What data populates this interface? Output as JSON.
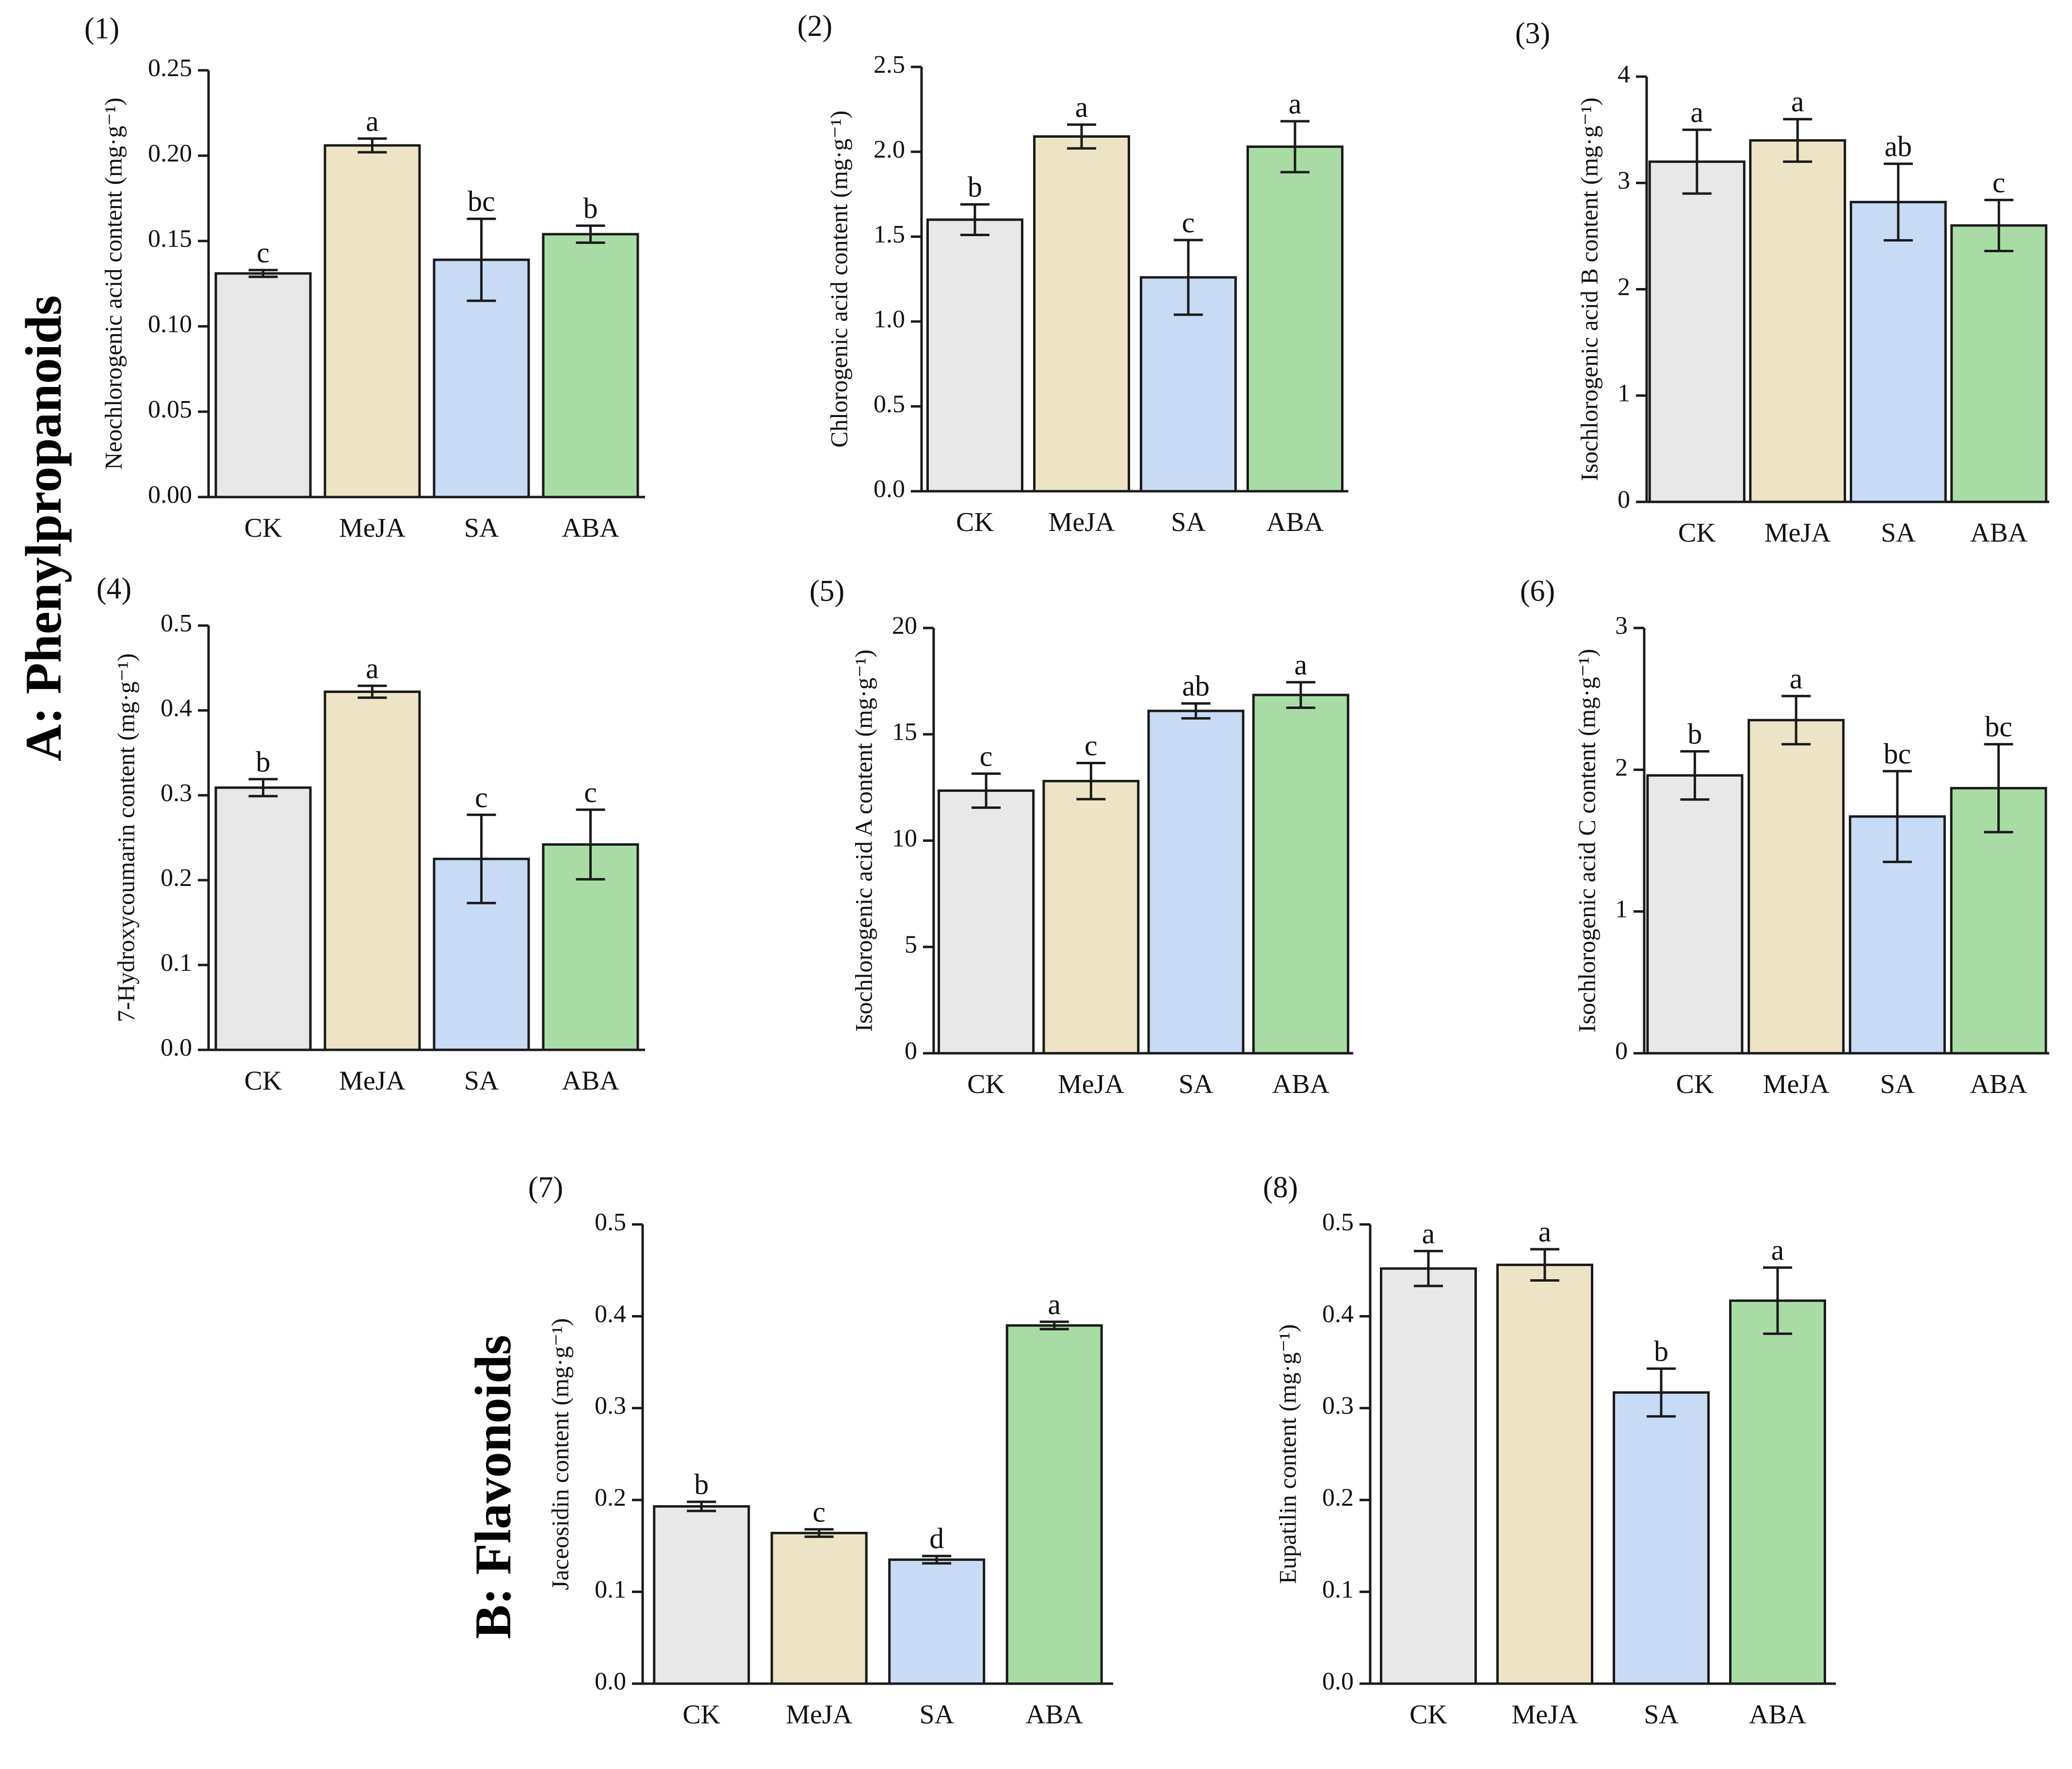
{
  "sections": {
    "a": "A: Phenylpropanoids",
    "b": "B: Flavonoids"
  },
  "colors": {
    "CK": "#e8e8e8",
    "MeJA": "#ece4c4",
    "SA": "#c7dbf5",
    "ABA": "#a9dca5",
    "stroke": "#1a1a1a"
  },
  "chart_data": [
    {
      "id": "1",
      "type": "bar",
      "label": "(1)",
      "ylabel": "Neochlorogenic acid content (mg·g⁻¹)",
      "categories": [
        "CK",
        "MeJA",
        "SA",
        "ABA"
      ],
      "values": [
        0.131,
        0.206,
        0.139,
        0.154
      ],
      "errors": [
        0.002,
        0.004,
        0.024,
        0.005
      ],
      "letters": [
        "c",
        "a",
        "bc",
        "b"
      ],
      "ylim": [
        0,
        0.25
      ],
      "yticks": [
        "0.00",
        "0.05",
        "0.10",
        "0.15",
        "0.20",
        "0.25"
      ]
    },
    {
      "id": "2",
      "type": "bar",
      "label": "(2)",
      "ylabel": "Chlorogenic acid content (mg·g⁻¹)",
      "categories": [
        "CK",
        "MeJA",
        "SA",
        "ABA"
      ],
      "values": [
        1.6,
        2.09,
        1.26,
        2.03
      ],
      "errors": [
        0.09,
        0.07,
        0.22,
        0.15
      ],
      "letters": [
        "b",
        "a",
        "c",
        "a"
      ],
      "ylim": [
        0,
        2.5
      ],
      "yticks": [
        "0.0",
        "0.5",
        "1.0",
        "1.5",
        "2.0",
        "2.5"
      ]
    },
    {
      "id": "3",
      "type": "bar",
      "label": "(3)",
      "ylabel": "Isochlorogenic acid B content (mg·g⁻¹)",
      "categories": [
        "CK",
        "MeJA",
        "SA",
        "ABA"
      ],
      "values": [
        3.2,
        3.4,
        2.82,
        2.6
      ],
      "errors": [
        0.3,
        0.2,
        0.36,
        0.24
      ],
      "letters": [
        "a",
        "a",
        "ab",
        "c"
      ],
      "ylim": [
        0,
        4
      ],
      "yticks": [
        "0",
        "1",
        "2",
        "3",
        "4"
      ]
    },
    {
      "id": "4",
      "type": "bar",
      "label": "(4)",
      "ylabel": "7-Hydroxycoumarin content (mg·g⁻¹)",
      "categories": [
        "CK",
        "MeJA",
        "SA",
        "ABA"
      ],
      "values": [
        0.309,
        0.422,
        0.225,
        0.242
      ],
      "errors": [
        0.01,
        0.007,
        0.052,
        0.041
      ],
      "letters": [
        "b",
        "a",
        "c",
        "c"
      ],
      "ylim": [
        0,
        0.5
      ],
      "yticks": [
        "0.0",
        "0.1",
        "0.2",
        "0.3",
        "0.4",
        "0.5"
      ]
    },
    {
      "id": "5",
      "type": "bar",
      "label": "(5)",
      "ylabel": "Isochlorogenic acid A content (mg·g⁻¹)",
      "categories": [
        "CK",
        "MeJA",
        "SA",
        "ABA"
      ],
      "values": [
        12.35,
        12.8,
        16.1,
        16.85
      ],
      "errors": [
        0.8,
        0.85,
        0.35,
        0.6
      ],
      "letters": [
        "c",
        "c",
        "ab",
        "a"
      ],
      "ylim": [
        0,
        20
      ],
      "yticks": [
        "0",
        "5",
        "10",
        "15",
        "20"
      ]
    },
    {
      "id": "6",
      "type": "bar",
      "label": "(6)",
      "ylabel": "Isochlorogenic acid C content (mg·g⁻¹)",
      "categories": [
        "CK",
        "MeJA",
        "SA",
        "ABA"
      ],
      "values": [
        1.96,
        2.35,
        1.67,
        1.87
      ],
      "errors": [
        0.17,
        0.17,
        0.32,
        0.31
      ],
      "letters": [
        "b",
        "a",
        "bc",
        "bc"
      ],
      "ylim": [
        0,
        3
      ],
      "yticks": [
        "0",
        "1",
        "2",
        "3"
      ]
    },
    {
      "id": "7",
      "type": "bar",
      "label": "(7)",
      "ylabel": "Jaceosidin content (mg·g⁻¹)",
      "categories": [
        "CK",
        "MeJA",
        "SA",
        "ABA"
      ],
      "values": [
        0.193,
        0.164,
        0.135,
        0.39
      ],
      "errors": [
        0.005,
        0.004,
        0.004,
        0.004
      ],
      "letters": [
        "b",
        "c",
        "d",
        "a"
      ],
      "ylim": [
        0,
        0.5
      ],
      "yticks": [
        "0.0",
        "0.1",
        "0.2",
        "0.3",
        "0.4",
        "0.5"
      ]
    },
    {
      "id": "8",
      "type": "bar",
      "label": "(8)",
      "ylabel": "Eupatilin content (mg·g⁻¹)",
      "categories": [
        "CK",
        "MeJA",
        "SA",
        "ABA"
      ],
      "values": [
        0.452,
        0.456,
        0.317,
        0.417
      ],
      "errors": [
        0.019,
        0.017,
        0.026,
        0.036
      ],
      "letters": [
        "a",
        "a",
        "b",
        "a"
      ],
      "ylim": [
        0,
        0.5
      ],
      "yticks": [
        "0.0",
        "0.1",
        "0.2",
        "0.3",
        "0.4",
        "0.5"
      ]
    }
  ]
}
